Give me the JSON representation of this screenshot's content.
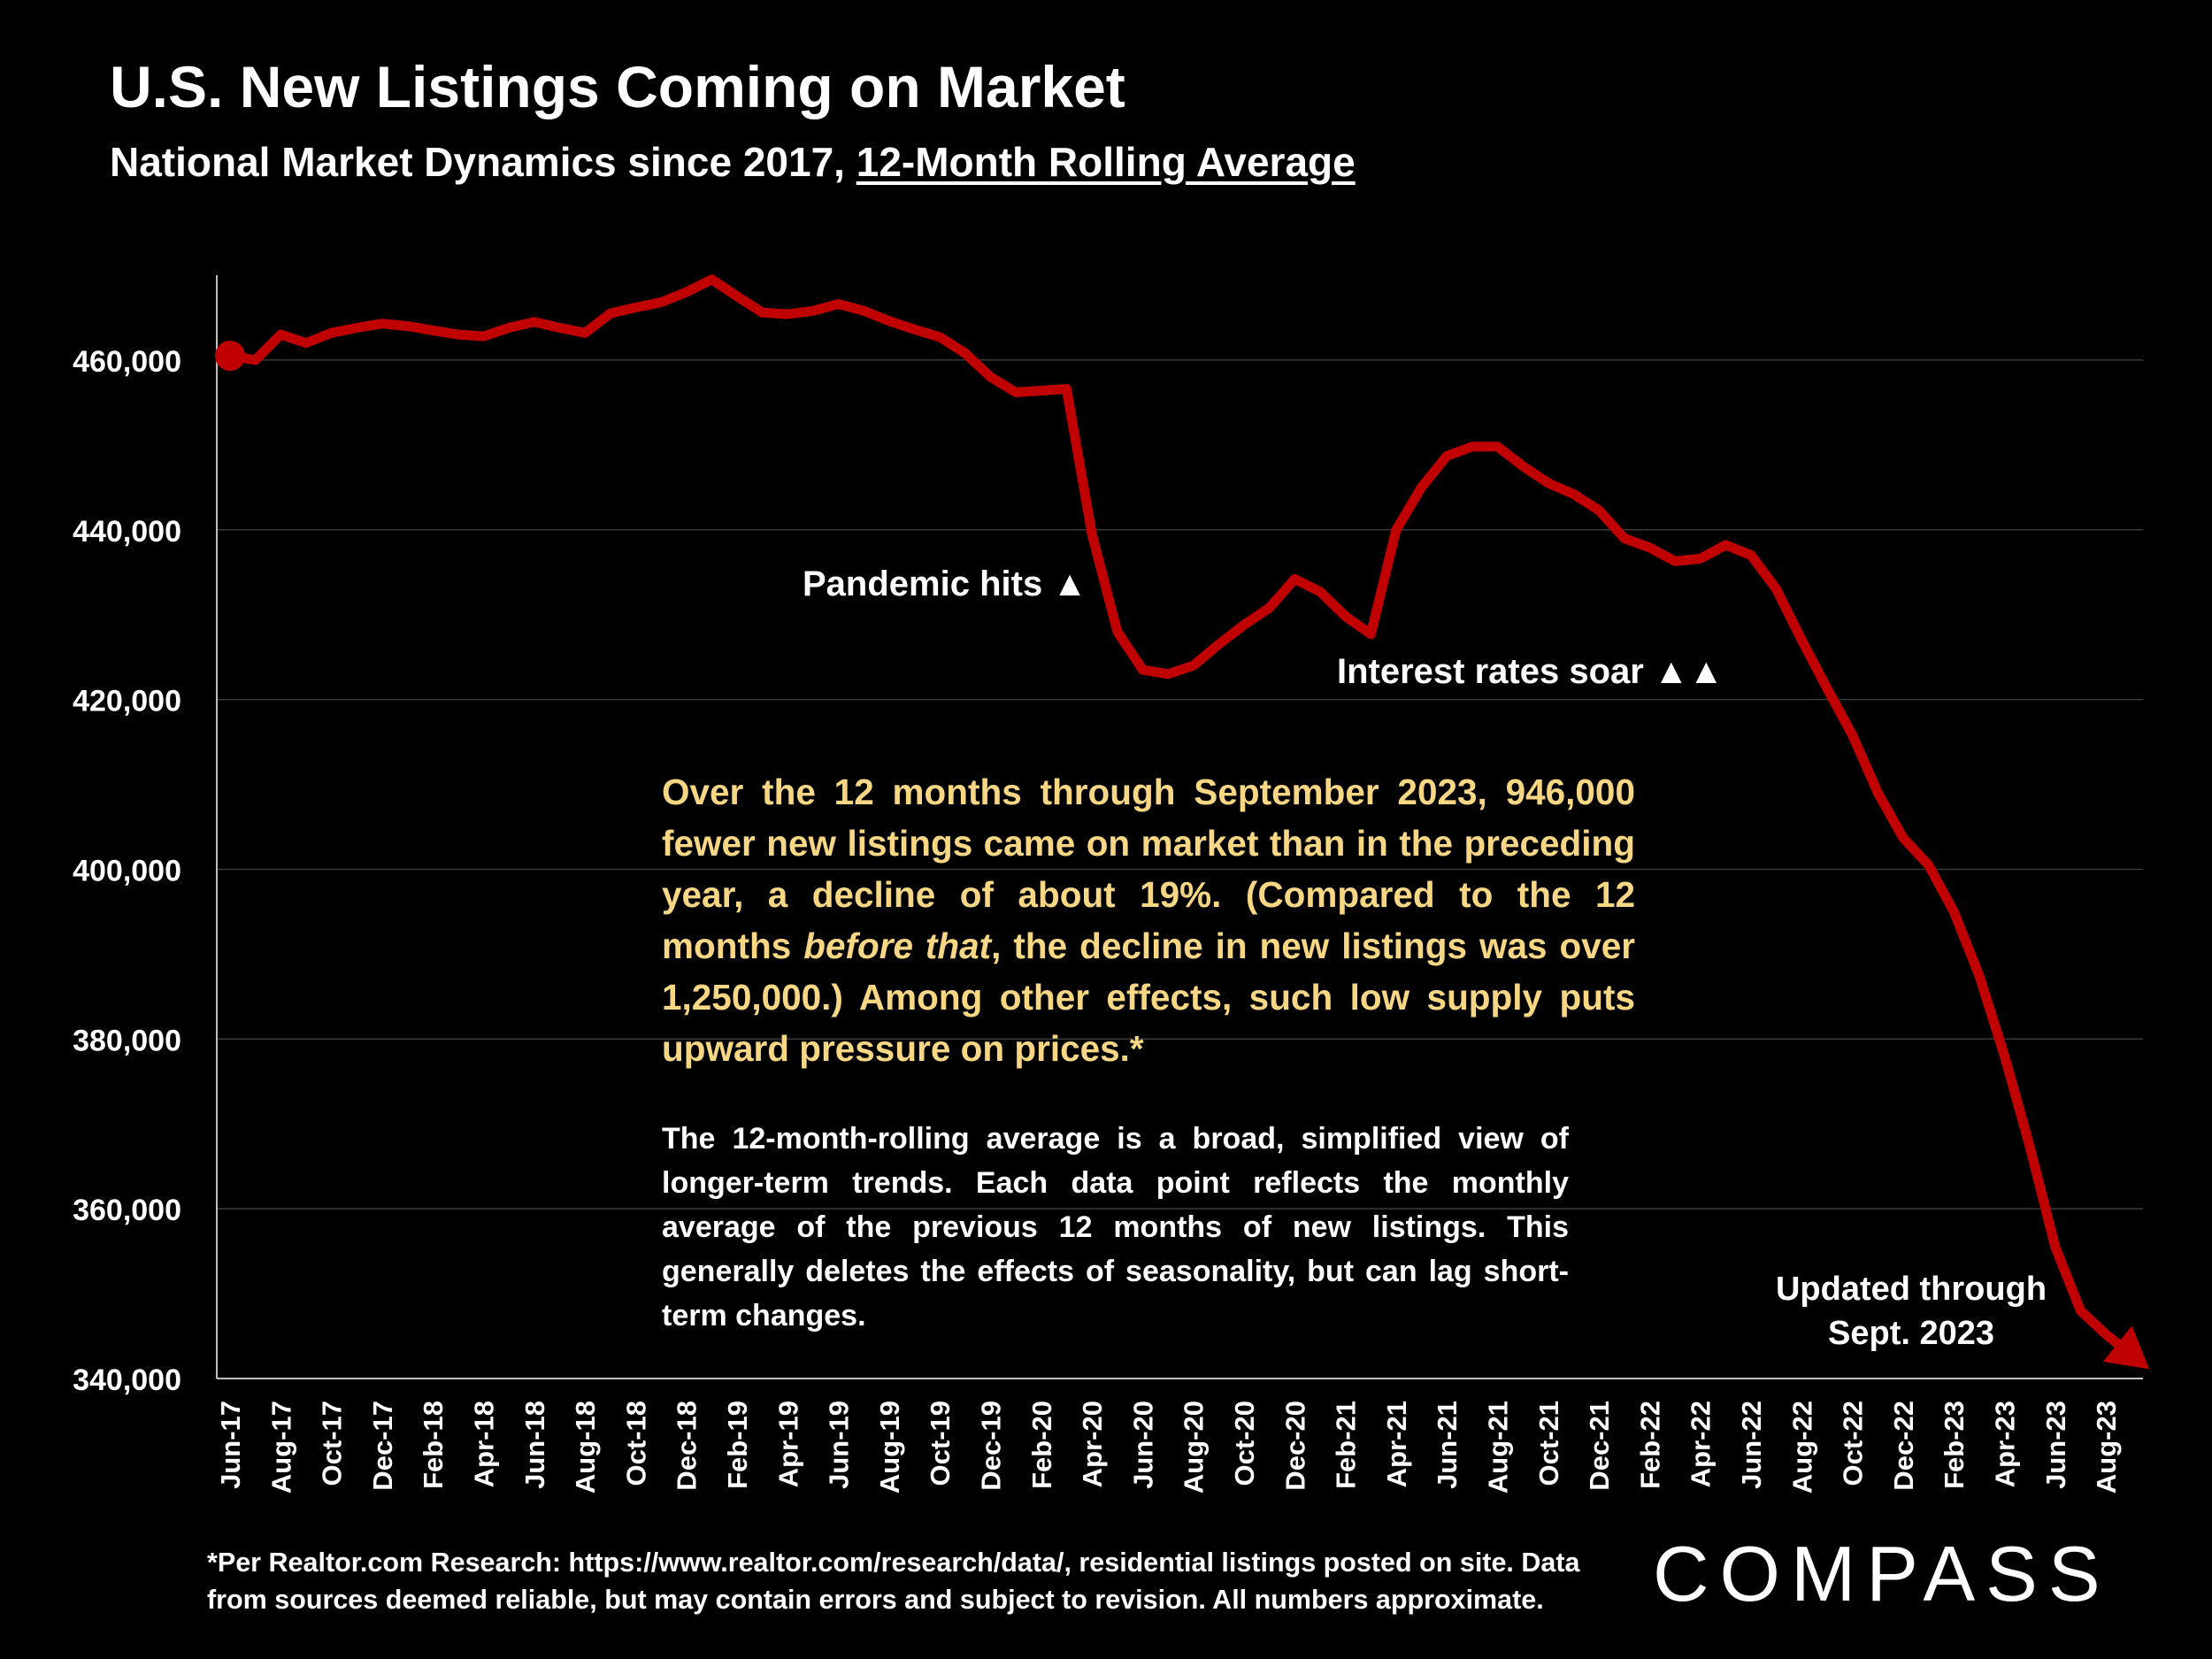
{
  "header": {
    "title": "U.S. New Listings Coming on Market",
    "subtitle_prefix": "National Market Dynamics since 2017, ",
    "subtitle_emphasis": "12-Month Rolling Average"
  },
  "annotations": {
    "pandemic": "Pandemic hits ▲",
    "rates": "Interest rates soar ▲▲",
    "updated": "Updated through Sept. 2023"
  },
  "callout": {
    "part1": "Over the 12 months through September 2023, 946,000 fewer new listings came on market than in the preceding year, a decline of about 19%. (Compared to the 12 months ",
    "italic": "before that",
    "part2": ", the decline in new listings was over 1,250,000.)  Among other effects, such low supply puts upward pressure on prices.*"
  },
  "note": "The 12-month-rolling average is a broad, simplified view of longer-term trends. Each data point reflects the monthly average of the previous 12 months of new listings. This generally deletes the effects of seasonality, but can lag short-term changes.",
  "footnote": "*Per Realtor.com Research:  https://www.realtor.com/research/data/, residential listings posted on site. Data from sources deemed reliable, but may contain errors and subject to revision. All numbers approximate.",
  "logo": "COMPASS",
  "colors": {
    "line": "#c00000",
    "background": "#000000",
    "callout": "#f7d783",
    "grid": "#3a3a3a"
  },
  "chart_data": {
    "type": "line",
    "title": "U.S. New Listings Coming on Market",
    "ylim": [
      340000,
      470000
    ],
    "yticks": [
      340000,
      360000,
      380000,
      400000,
      420000,
      440000,
      460000
    ],
    "ytick_labels": [
      "340,000",
      "360,000",
      "380,000",
      "400,000",
      "420,000",
      "440,000",
      "460,000"
    ],
    "xtick_labels": [
      "Jun-17",
      "Aug-17",
      "Oct-17",
      "Dec-17",
      "Feb-18",
      "Apr-18",
      "Jun-18",
      "Aug-18",
      "Oct-18",
      "Dec-18",
      "Feb-19",
      "Apr-19",
      "Jun-19",
      "Aug-19",
      "Oct-19",
      "Dec-19",
      "Feb-20",
      "Apr-20",
      "Jun-20",
      "Aug-20",
      "Oct-20",
      "Dec-20",
      "Feb-21",
      "Apr-21",
      "Jun-21",
      "Aug-21",
      "Oct-21",
      "Dec-21",
      "Feb-22",
      "Apr-22",
      "Jun-22",
      "Aug-22",
      "Oct-22",
      "Dec-22",
      "Feb-23",
      "Apr-23",
      "Jun-23",
      "Aug-23"
    ],
    "x": [
      "Jun-17",
      "Jul-17",
      "Aug-17",
      "Sep-17",
      "Oct-17",
      "Nov-17",
      "Dec-17",
      "Jan-18",
      "Feb-18",
      "Mar-18",
      "Apr-18",
      "May-18",
      "Jun-18",
      "Jul-18",
      "Aug-18",
      "Sep-18",
      "Oct-18",
      "Nov-18",
      "Dec-18",
      "Jan-19",
      "Feb-19",
      "Mar-19",
      "Apr-19",
      "May-19",
      "Jun-19",
      "Jul-19",
      "Aug-19",
      "Sep-19",
      "Oct-19",
      "Nov-19",
      "Dec-19",
      "Jan-20",
      "Feb-20",
      "Mar-20",
      "Apr-20",
      "May-20",
      "Jun-20",
      "Jul-20",
      "Aug-20",
      "Sep-20",
      "Oct-20",
      "Nov-20",
      "Dec-20",
      "Jan-21",
      "Feb-21",
      "Mar-21",
      "Apr-21",
      "May-21",
      "Jun-21",
      "Jul-21",
      "Aug-21",
      "Sep-21",
      "Oct-21",
      "Nov-21",
      "Dec-21",
      "Jan-22",
      "Feb-22",
      "Mar-22",
      "Apr-22",
      "May-22",
      "Jun-22",
      "Jul-22",
      "Aug-22",
      "Sep-22",
      "Oct-22",
      "Nov-22",
      "Dec-22",
      "Jan-23",
      "Feb-23",
      "Mar-23",
      "Apr-23",
      "May-23",
      "Jun-23",
      "Jul-23",
      "Aug-23",
      "Sep-23"
    ],
    "series": [
      {
        "values": [
          460500,
          460000,
          463000,
          462000,
          463200,
          463800,
          464300,
          464000,
          463500,
          463000,
          462800,
          463800,
          464500,
          463800,
          463200,
          465500,
          466200,
          466800,
          468000,
          469500,
          467500,
          465600,
          465400,
          465800,
          466600,
          465800,
          464600,
          463600,
          462700,
          460800,
          458000,
          456200,
          456400,
          456600,
          439500,
          428000,
          423500,
          423000,
          424000,
          426500,
          428800,
          430800,
          434200,
          432700,
          429800,
          427700,
          440000,
          445000,
          448700,
          449800,
          449800,
          447500,
          445500,
          444200,
          442300,
          439000,
          437900,
          436300,
          436600,
          438200,
          437000,
          433000,
          427000,
          421300,
          415800,
          409000,
          403700,
          400500,
          395000,
          387500,
          378000,
          367300,
          355500,
          348000,
          345200,
          342800
        ]
      }
    ]
  }
}
